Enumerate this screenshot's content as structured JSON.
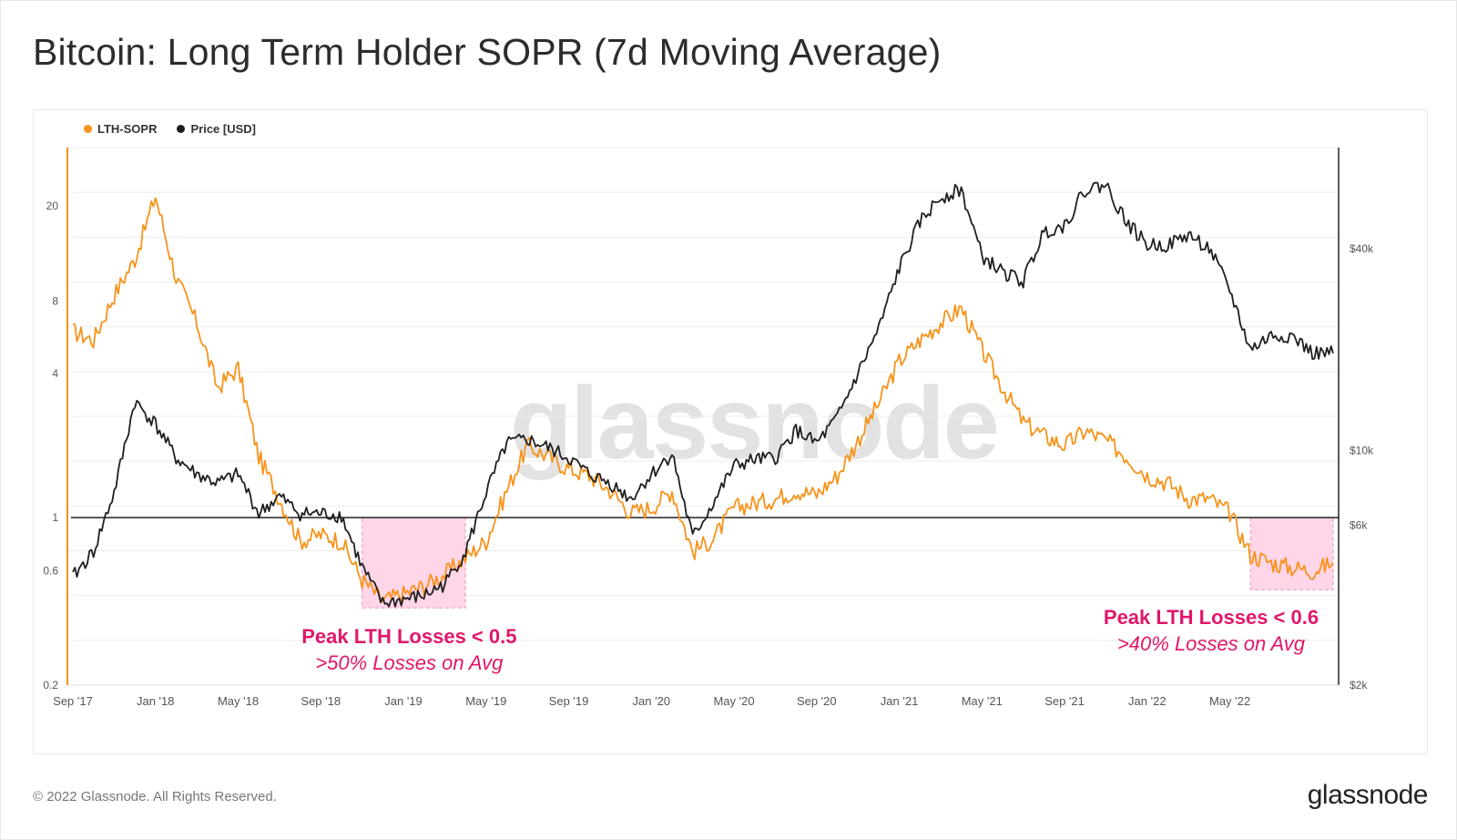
{
  "page": {
    "title": "Bitcoin: Long Term Holder SOPR (7d Moving Average)",
    "copyright": "© 2022 Glassnode. All Rights Reserved.",
    "logo_text": "glassnode",
    "watermark_text": "glassnode"
  },
  "colors": {
    "sopr": "#f7931a",
    "price": "#1f1f1f",
    "highlight_fill": "#ffd1e6",
    "highlight_stroke": "#e88ab0",
    "annotation": "#e0176a",
    "axis_text": "#555555",
    "grid": "#ececec",
    "baseline": "#222222"
  },
  "chart_data": {
    "type": "line",
    "title": "Bitcoin: Long Term Holder SOPR (7d Moving Average)",
    "legend": [
      "LTH-SOPR",
      "Price [USD]"
    ],
    "legend_position": "top-left",
    "grid": true,
    "x_ticks": [
      "Sep '17",
      "Jan '18",
      "May '18",
      "Sep '18",
      "Jan '19",
      "May '19",
      "Sep '19",
      "Jan '20",
      "May '20",
      "Sep '20",
      "Jan '21",
      "May '21",
      "Sep '21",
      "Jan '22",
      "May '22"
    ],
    "x_range": [
      "2017-09",
      "2022-10"
    ],
    "y_left": {
      "label": "",
      "scale": "log",
      "ticks": [
        0.2,
        0.6,
        1,
        4,
        8,
        20
      ],
      "tick_labels": [
        "0.2",
        "0.6",
        "1",
        "4",
        "8",
        "20"
      ],
      "range": [
        0.2,
        35
      ]
    },
    "y_right": {
      "label": "",
      "scale": "log",
      "ticks": [
        2000,
        6000,
        10000,
        40000
      ],
      "tick_labels": [
        "$2k",
        "$6k",
        "$10k",
        "$40k"
      ],
      "range": [
        2000,
        80000
      ]
    },
    "reference_line": {
      "axis": "left",
      "value": 1
    },
    "series": [
      {
        "name": "LTH-SOPR",
        "axis": "left",
        "points": [
          [
            "2017-09",
            6.0
          ],
          [
            "2017-10",
            5.5
          ],
          [
            "2017-11",
            8.5
          ],
          [
            "2017-12",
            12.0
          ],
          [
            "2018-01",
            22.0
          ],
          [
            "2018-02",
            10.0
          ],
          [
            "2018-03",
            6.5
          ],
          [
            "2018-04",
            3.5
          ],
          [
            "2018-05",
            4.2
          ],
          [
            "2018-06",
            1.8
          ],
          [
            "2018-07",
            1.2
          ],
          [
            "2018-08",
            0.8
          ],
          [
            "2018-09",
            0.85
          ],
          [
            "2018-10",
            0.8
          ],
          [
            "2018-11",
            0.55
          ],
          [
            "2018-12",
            0.45
          ],
          [
            "2019-01",
            0.48
          ],
          [
            "2019-02",
            0.52
          ],
          [
            "2019-03",
            0.58
          ],
          [
            "2019-04",
            0.68
          ],
          [
            "2019-05",
            0.8
          ],
          [
            "2019-06",
            1.3
          ],
          [
            "2019-07",
            2.0
          ],
          [
            "2019-08",
            1.8
          ],
          [
            "2019-09",
            1.6
          ],
          [
            "2019-10",
            1.5
          ],
          [
            "2019-11",
            1.3
          ],
          [
            "2019-12",
            1.05
          ],
          [
            "2020-01",
            1.1
          ],
          [
            "2020-02",
            1.3
          ],
          [
            "2020-03",
            0.72
          ],
          [
            "2020-04",
            0.82
          ],
          [
            "2020-05",
            1.1
          ],
          [
            "2020-06",
            1.15
          ],
          [
            "2020-07",
            1.2
          ],
          [
            "2020-08",
            1.3
          ],
          [
            "2020-09",
            1.25
          ],
          [
            "2020-10",
            1.5
          ],
          [
            "2020-11",
            2.1
          ],
          [
            "2020-12",
            3.0
          ],
          [
            "2021-01",
            4.5
          ],
          [
            "2021-02",
            5.5
          ],
          [
            "2021-03",
            6.5
          ],
          [
            "2021-04",
            7.5
          ],
          [
            "2021-05",
            5.0
          ],
          [
            "2021-06",
            3.5
          ],
          [
            "2021-07",
            2.5
          ],
          [
            "2021-08",
            2.2
          ],
          [
            "2021-09",
            2.0
          ],
          [
            "2021-10",
            2.3
          ],
          [
            "2021-11",
            2.1
          ],
          [
            "2021-12",
            1.8
          ],
          [
            "2022-01",
            1.5
          ],
          [
            "2022-02",
            1.4
          ],
          [
            "2022-03",
            1.2
          ],
          [
            "2022-04",
            1.2
          ],
          [
            "2022-05",
            1.05
          ],
          [
            "2022-06",
            0.7
          ],
          [
            "2022-07",
            0.65
          ],
          [
            "2022-08",
            0.62
          ],
          [
            "2022-09",
            0.6
          ],
          [
            "2022-10",
            0.65
          ]
        ]
      },
      {
        "name": "Price [USD]",
        "axis": "right",
        "points": [
          [
            "2017-09",
            4200
          ],
          [
            "2017-10",
            5000
          ],
          [
            "2017-11",
            7500
          ],
          [
            "2017-12",
            14000
          ],
          [
            "2018-01",
            12000
          ],
          [
            "2018-02",
            9500
          ],
          [
            "2018-03",
            8500
          ],
          [
            "2018-04",
            8000
          ],
          [
            "2018-05",
            8500
          ],
          [
            "2018-06",
            6500
          ],
          [
            "2018-07",
            7300
          ],
          [
            "2018-08",
            6500
          ],
          [
            "2018-09",
            6500
          ],
          [
            "2018-10",
            6400
          ],
          [
            "2018-11",
            4500
          ],
          [
            "2018-12",
            3500
          ],
          [
            "2019-01",
            3600
          ],
          [
            "2019-02",
            3700
          ],
          [
            "2019-03",
            4000
          ],
          [
            "2019-04",
            5000
          ],
          [
            "2019-05",
            7500
          ],
          [
            "2019-06",
            10500
          ],
          [
            "2019-07",
            10800
          ],
          [
            "2019-08",
            10200
          ],
          [
            "2019-09",
            9500
          ],
          [
            "2019-10",
            8500
          ],
          [
            "2019-11",
            8000
          ],
          [
            "2019-12",
            7200
          ],
          [
            "2020-01",
            8500
          ],
          [
            "2020-02",
            9800
          ],
          [
            "2020-03",
            5500
          ],
          [
            "2020-04",
            7000
          ],
          [
            "2020-05",
            9000
          ],
          [
            "2020-06",
            9400
          ],
          [
            "2020-07",
            9500
          ],
          [
            "2020-08",
            11500
          ],
          [
            "2020-09",
            10500
          ],
          [
            "2020-10",
            12500
          ],
          [
            "2020-11",
            17000
          ],
          [
            "2020-12",
            23000
          ],
          [
            "2021-01",
            35000
          ],
          [
            "2021-02",
            48000
          ],
          [
            "2021-03",
            57000
          ],
          [
            "2021-04",
            60000
          ],
          [
            "2021-05",
            38000
          ],
          [
            "2021-06",
            34000
          ],
          [
            "2021-07",
            32000
          ],
          [
            "2021-08",
            45000
          ],
          [
            "2021-09",
            47000
          ],
          [
            "2021-10",
            60000
          ],
          [
            "2021-11",
            62000
          ],
          [
            "2021-12",
            48000
          ],
          [
            "2022-01",
            41000
          ],
          [
            "2022-02",
            41000
          ],
          [
            "2022-03",
            44000
          ],
          [
            "2022-04",
            40000
          ],
          [
            "2022-05",
            30000
          ],
          [
            "2022-06",
            20000
          ],
          [
            "2022-07",
            22000
          ],
          [
            "2022-08",
            22000
          ],
          [
            "2022-09",
            19500
          ],
          [
            "2022-10",
            19500
          ]
        ]
      }
    ],
    "highlight_zones": [
      {
        "x0": "2018-11",
        "x1": "2019-04",
        "y0": 0.42,
        "y1": 1.0
      },
      {
        "x0": "2022-06",
        "x1": "2022-10",
        "y0": 0.5,
        "y1": 1.0
      }
    ],
    "annotations": [
      {
        "heading": "Peak LTH Losses < 0.5",
        "text": ">50% Losses on Avg"
      },
      {
        "heading": "Peak LTH Losses < 0.6",
        "text": ">40% Losses on Avg"
      }
    ]
  }
}
